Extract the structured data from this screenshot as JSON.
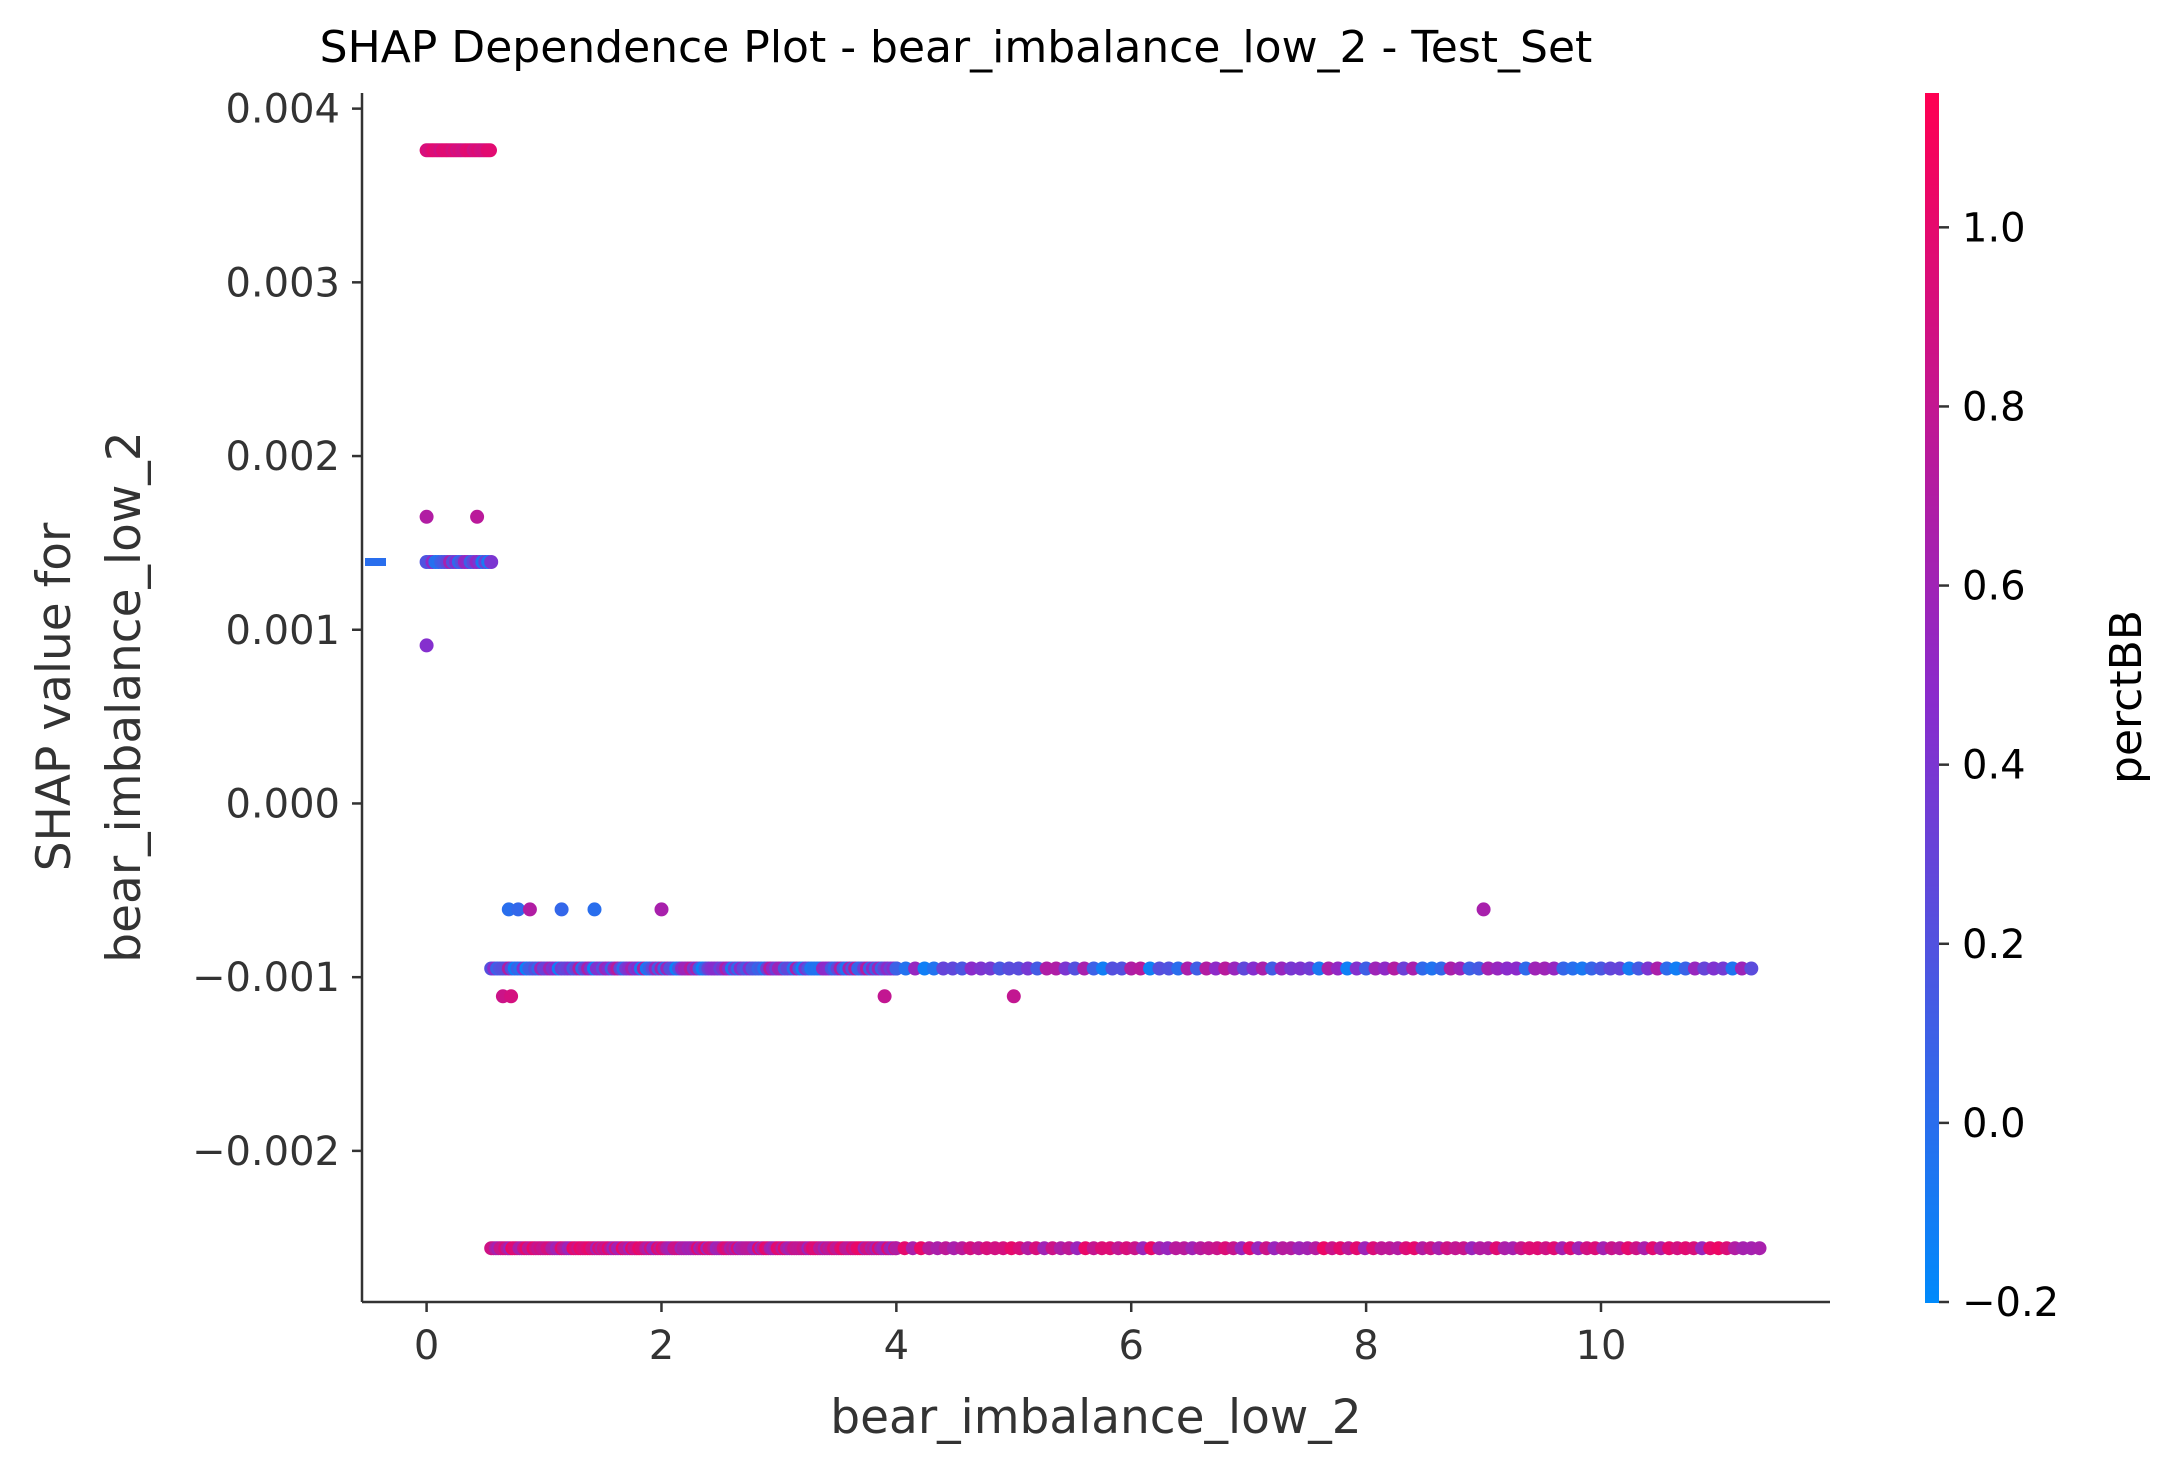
{
  "chart_data": {
    "type": "scatter",
    "title": "SHAP Dependence Plot - bear_imbalance_low_2 - Test_Set",
    "xlabel": "bear_imbalance_low_2",
    "ylabel_lines": [
      "SHAP value for",
      "bear_imbalance_low_2"
    ],
    "xlim": [
      -0.55,
      11.95
    ],
    "ylim": [
      -0.00287,
      0.00409
    ],
    "x_ticks": [
      0,
      2,
      4,
      6,
      8,
      10
    ],
    "x_tick_labels": [
      "0",
      "2",
      "4",
      "6",
      "8",
      "10"
    ],
    "y_ticks": [
      -0.002,
      -0.001,
      0.0,
      0.001,
      0.002,
      0.003,
      0.004
    ],
    "y_tick_labels": [
      "−0.002",
      "−0.001",
      "0.000",
      "0.001",
      "0.002",
      "0.003",
      "0.004"
    ],
    "grid": false,
    "colorbar": {
      "label": "perctBB",
      "range": [
        -0.2,
        1.15
      ],
      "ticks": [
        -0.2,
        0.0,
        0.2,
        0.4,
        0.6,
        0.8,
        1.0
      ],
      "tick_labels": [
        "−0.2",
        "0.0",
        "0.2",
        "0.4",
        "0.6",
        "0.8",
        "1.0"
      ],
      "low_color": "#008afb",
      "mid_color": "#8a2bcc",
      "high_color": "#ff0052"
    },
    "point_groups": [
      {
        "y": 0.00376,
        "x_start": 0.0,
        "x_end": 0.55,
        "step": 0.02,
        "c_range": [
          0.85,
          1.0
        ]
      },
      {
        "y": 0.00139,
        "x_start": 0.0,
        "x_end": 0.55,
        "step": 0.025,
        "c_range": [
          -0.15,
          0.65
        ]
      },
      {
        "y": -0.00095,
        "x_start": 0.55,
        "x_end": 4.0,
        "step": 0.025,
        "c_range": [
          -0.15,
          0.75
        ]
      },
      {
        "y": -0.00095,
        "x_start": 4.0,
        "x_end": 11.35,
        "step": 0.08,
        "c_range": [
          -0.15,
          0.75
        ]
      },
      {
        "y": -0.00256,
        "x_start": 0.55,
        "x_end": 4.0,
        "step": 0.02,
        "c_range": [
          0.55,
          1.05
        ]
      },
      {
        "y": -0.00256,
        "x_start": 4.0,
        "x_end": 11.35,
        "step": 0.07,
        "c_range": [
          0.55,
          1.05
        ]
      }
    ],
    "points": [
      {
        "x": 0.0,
        "y": 0.00165,
        "c": 0.7
      },
      {
        "x": 0.43,
        "y": 0.00165,
        "c": 0.75
      },
      {
        "x": 0.0,
        "y": 0.00091,
        "c": 0.45
      },
      {
        "x": 0.7,
        "y": -0.00061,
        "c": 0.0
      },
      {
        "x": 0.78,
        "y": -0.00061,
        "c": 0.05
      },
      {
        "x": 0.88,
        "y": -0.00061,
        "c": 0.7
      },
      {
        "x": 1.15,
        "y": -0.00061,
        "c": 0.05
      },
      {
        "x": 1.43,
        "y": -0.00061,
        "c": 0.0
      },
      {
        "x": 2.0,
        "y": -0.00061,
        "c": 0.65
      },
      {
        "x": 9.0,
        "y": -0.00061,
        "c": 0.65
      },
      {
        "x": 0.65,
        "y": -0.00111,
        "c": 0.85
      },
      {
        "x": 0.72,
        "y": -0.00111,
        "c": 0.9
      },
      {
        "x": 3.9,
        "y": -0.00111,
        "c": 0.8
      },
      {
        "x": 5.0,
        "y": -0.00111,
        "c": 0.8
      }
    ],
    "legend_segment": {
      "y": 0.00139,
      "c": 0.0
    }
  }
}
